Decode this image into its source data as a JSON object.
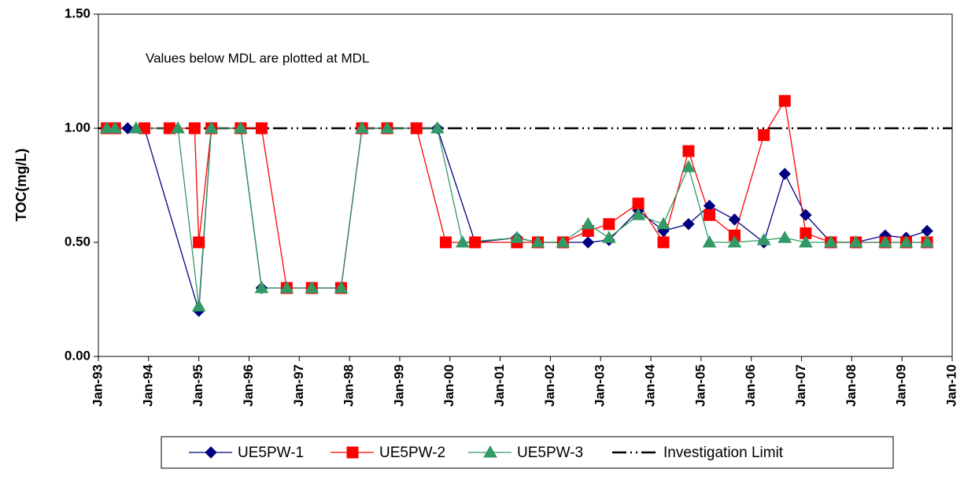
{
  "chart_data": {
    "type": "line",
    "y_label": "TOC(mg/L)",
    "annotation": "Values below MDL are plotted at MDL",
    "xlim": [
      "1993-01",
      "2010-01"
    ],
    "xticks": [
      {
        "value": "1993-01",
        "label": "Jan-93"
      },
      {
        "value": "1994-01",
        "label": "Jan-94"
      },
      {
        "value": "1995-01",
        "label": "Jan-95"
      },
      {
        "value": "1996-01",
        "label": "Jan-96"
      },
      {
        "value": "1997-01",
        "label": "Jan-97"
      },
      {
        "value": "1998-01",
        "label": "Jan-98"
      },
      {
        "value": "1999-01",
        "label": "Jan-99"
      },
      {
        "value": "2000-01",
        "label": "Jan-00"
      },
      {
        "value": "2001-01",
        "label": "Jan-01"
      },
      {
        "value": "2002-01",
        "label": "Jan-02"
      },
      {
        "value": "2003-01",
        "label": "Jan-03"
      },
      {
        "value": "2004-01",
        "label": "Jan-04"
      },
      {
        "value": "2005-01",
        "label": "Jan-05"
      },
      {
        "value": "2006-01",
        "label": "Jan-06"
      },
      {
        "value": "2007-01",
        "label": "Jan-07"
      },
      {
        "value": "2008-01",
        "label": "Jan-08"
      },
      {
        "value": "2009-01",
        "label": "Jan-09"
      },
      {
        "value": "2010-01",
        "label": "Jan-10"
      }
    ],
    "ylim": [
      0,
      1.5
    ],
    "yticks": [
      {
        "value": 0,
        "label": "0.00"
      },
      {
        "value": 0.5,
        "label": "0.50"
      },
      {
        "value": 1,
        "label": "1.00"
      },
      {
        "value": 1.5,
        "label": "1.50"
      }
    ],
    "legend": "bottom",
    "series": [
      {
        "name": "UE5PW-1",
        "color": "#000080",
        "marker": "diamond",
        "x": [
          "1993-03",
          "1993-05",
          "1993-08",
          "1993-12",
          "1995-01",
          "1995-04",
          "1995-11",
          "1996-04",
          "1996-10",
          "1997-04",
          "1997-11",
          "1998-04",
          "1998-10",
          "1999-05",
          "1999-10",
          "2000-07",
          "2001-05",
          "2001-10",
          "2002-04",
          "2002-10",
          "2003-03",
          "2003-10",
          "2004-04",
          "2004-10",
          "2005-03",
          "2005-09",
          "2006-04",
          "2006-09",
          "2007-02",
          "2007-08",
          "2008-02",
          "2008-09",
          "2009-02",
          "2009-07"
        ],
        "values": [
          1.0,
          1.0,
          1.0,
          1.0,
          0.2,
          1.0,
          1.0,
          0.3,
          0.3,
          0.3,
          0.3,
          1.0,
          1.0,
          1.0,
          1.0,
          0.5,
          0.52,
          0.5,
          0.5,
          0.5,
          0.51,
          0.64,
          0.55,
          0.58,
          0.66,
          0.6,
          0.5,
          0.8,
          0.62,
          0.5,
          0.5,
          0.53,
          0.52,
          0.55
        ]
      },
      {
        "name": "UE5PW-2",
        "color": "#ff0000",
        "marker": "square",
        "x": [
          "1993-03",
          "1993-05",
          "1993-12",
          "1994-06",
          "1994-12",
          "1995-01",
          "1995-04",
          "1995-11",
          "1996-04",
          "1996-10",
          "1997-04",
          "1997-11",
          "1998-04",
          "1998-10",
          "1999-05",
          "1999-12",
          "2000-07",
          "2001-05",
          "2001-10",
          "2002-04",
          "2002-10",
          "2003-03",
          "2003-10",
          "2004-04",
          "2004-10",
          "2005-03",
          "2005-09",
          "2006-04",
          "2006-09",
          "2007-02",
          "2007-08",
          "2008-02",
          "2008-09",
          "2009-02",
          "2009-07"
        ],
        "values": [
          1.0,
          1.0,
          1.0,
          1.0,
          1.0,
          0.5,
          1.0,
          1.0,
          1.0,
          0.3,
          0.3,
          0.3,
          1.0,
          1.0,
          1.0,
          0.5,
          0.5,
          0.5,
          0.5,
          0.5,
          0.55,
          0.58,
          0.67,
          0.5,
          0.9,
          0.62,
          0.53,
          0.97,
          1.12,
          0.54,
          0.5,
          0.5,
          0.5,
          0.5,
          0.5
        ]
      },
      {
        "name": "UE5PW-3",
        "color": "#339966",
        "marker": "triangle",
        "x": [
          "1993-03",
          "1993-05",
          "1993-10",
          "1994-08",
          "1995-01",
          "1995-04",
          "1995-11",
          "1996-04",
          "1996-10",
          "1997-04",
          "1997-11",
          "1998-04",
          "1998-10",
          "1999-10",
          "2000-04",
          "2001-05",
          "2001-10",
          "2002-04",
          "2002-10",
          "2003-03",
          "2003-10",
          "2004-04",
          "2004-10",
          "2005-03",
          "2005-09",
          "2006-04",
          "2006-09",
          "2007-02",
          "2007-08",
          "2008-02",
          "2008-09",
          "2009-02",
          "2009-07"
        ],
        "values": [
          1.0,
          1.0,
          1.0,
          1.0,
          0.22,
          1.0,
          1.0,
          0.3,
          0.3,
          0.3,
          0.3,
          1.0,
          1.0,
          1.0,
          0.5,
          0.52,
          0.5,
          0.5,
          0.58,
          0.52,
          0.62,
          0.58,
          0.83,
          0.5,
          0.5,
          0.51,
          0.52,
          0.5,
          0.5,
          0.5,
          0.5,
          0.5,
          0.5
        ]
      }
    ],
    "reference_line": {
      "name": "Investigation Limit",
      "value": 1.0,
      "color": "#000000"
    }
  }
}
